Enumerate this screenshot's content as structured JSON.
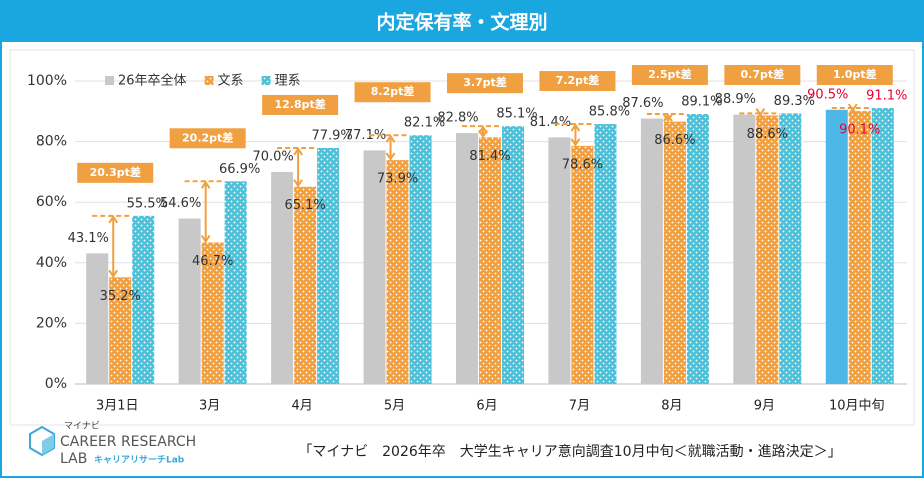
{
  "chart_data": {
    "type": "bar",
    "title": "内定保有率・文理別",
    "categories": [
      "3月1日",
      "3月",
      "4月",
      "5月",
      "6月",
      "7月",
      "8月",
      "9月",
      "10月中旬"
    ],
    "series": [
      {
        "name": "26年卒全体",
        "color": "#c8c8c8",
        "colors": [
          "#c8c8c8",
          "#c8c8c8",
          "#c8c8c8",
          "#c8c8c8",
          "#c8c8c8",
          "#c8c8c8",
          "#c8c8c8",
          "#c8c8c8",
          "#4db8e8"
        ],
        "values": [
          43.1,
          54.6,
          70.0,
          77.1,
          82.8,
          81.4,
          87.6,
          88.9,
          90.5
        ],
        "value_labels": [
          "43.1%",
          "54.6%",
          "70.0%",
          "77.1%",
          "82.8%",
          "81.4%",
          "87.6%",
          "88.9%",
          "90.5%"
        ],
        "value_label_colors": [
          "#333333",
          "#333333",
          "#333333",
          "#333333",
          "#333333",
          "#333333",
          "#333333",
          "#333333",
          "#e60033"
        ]
      },
      {
        "name": "文系",
        "color": "#f0a040",
        "values": [
          35.2,
          46.7,
          65.1,
          73.9,
          81.4,
          78.6,
          86.6,
          88.6,
          90.1
        ],
        "value_labels": [
          "35.2%",
          "46.7%",
          "65.1%",
          "73.9%",
          "81.4%",
          "78.6%",
          "86.6%",
          "88.6%",
          "90.1%"
        ],
        "value_label_colors": [
          "#333333",
          "#333333",
          "#333333",
          "#333333",
          "#333333",
          "#333333",
          "#333333",
          "#333333",
          "#e60033"
        ]
      },
      {
        "name": "理系",
        "color": "#4ec0d8",
        "values": [
          55.5,
          66.9,
          77.9,
          82.1,
          85.1,
          85.8,
          89.1,
          89.3,
          91.1
        ],
        "value_labels": [
          "55.5%",
          "66.9%",
          "77.9%",
          "82.1%",
          "85.1%",
          "85.8%",
          "89.1%",
          "89.3%",
          "91.1%"
        ],
        "value_label_colors": [
          "#333333",
          "#333333",
          "#333333",
          "#333333",
          "#333333",
          "#333333",
          "#333333",
          "#333333",
          "#e60033"
        ]
      }
    ],
    "gaps": {
      "color": "#f0a040",
      "values": [
        20.3,
        20.2,
        12.8,
        8.2,
        3.7,
        7.2,
        2.5,
        0.7,
        1.0
      ],
      "value_labels": [
        "20.3pt差",
        "20.2pt差",
        "12.8pt差",
        "8.2pt差",
        "3.7pt差",
        "7.2pt差",
        "2.5pt差",
        "0.7pt差",
        "1.0pt差"
      ]
    },
    "ylim": [
      0,
      100
    ],
    "yticks": [
      {
        "value": 0,
        "label": "0%"
      },
      {
        "value": 20,
        "label": "20%"
      },
      {
        "value": 40,
        "label": "40%"
      },
      {
        "value": 60,
        "label": "60%"
      },
      {
        "value": 80,
        "label": "80%"
      },
      {
        "value": 100,
        "label": "100%"
      }
    ],
    "grid": true,
    "legend": "top-left",
    "source": "「マイナビ　2026年卒　大学生キャリア意向調査10月中旬＜就職活動・進路決定＞」"
  },
  "branding": {
    "brand": "マイナビ",
    "line1": "CAREER RESEARCH",
    "line2": "LAB",
    "sub": "キャリアリサーチLab"
  }
}
